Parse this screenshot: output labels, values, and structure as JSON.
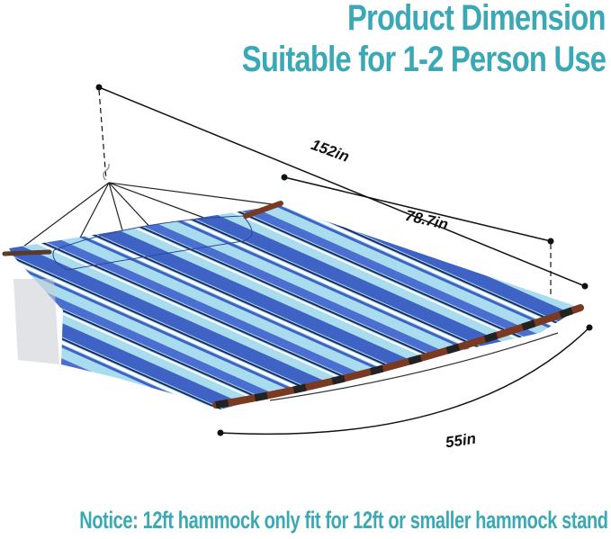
{
  "header": {
    "title": "Product Dimension",
    "subtitle": "Suitable for 1-2 Person Use"
  },
  "dimensions": {
    "total_length": "152in",
    "bed_length": "78.7in",
    "width": "55in"
  },
  "notice": "Notice: 12ft hammock only fit for 12ft or smaller hammock stand",
  "colors": {
    "accent": "#3aa9b5",
    "stripe_blue": "#3f63c4",
    "stripe_light": "#a9dcef",
    "stripe_navy": "#1e2a60",
    "spreader_bar": "#7a3a22"
  }
}
